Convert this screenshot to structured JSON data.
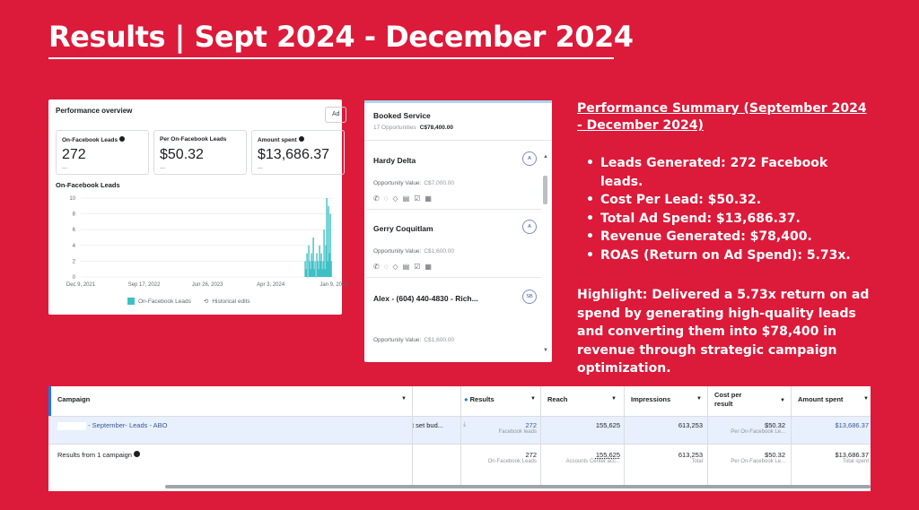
{
  "slide": {
    "title": "Results | Sept 2024 - December 2024"
  },
  "performance_overview": {
    "title": "Performance overview",
    "ad_button": "Ad",
    "metrics": [
      {
        "label": "On-Facebook Leads",
        "value": "272",
        "note": "—"
      },
      {
        "label": "Per On-Facebook Leads",
        "value": "$50.32",
        "note": "—"
      },
      {
        "label": "Amount spent",
        "value": "$13,686.37",
        "note": "—"
      }
    ],
    "chart_title": "On-Facebook Leads",
    "legend_series": "On-Facebook Leads",
    "legend_historical": "Historical edits"
  },
  "chart_data": {
    "type": "bar",
    "title": "On-Facebook Leads",
    "xlabel": "",
    "ylabel": "",
    "x_tick_labels": [
      "Dec 9, 2021",
      "Sep 17, 2022",
      "Jun 26, 2023",
      "Apr 3, 2024",
      "Jan 9, 2025"
    ],
    "y_ticks": [
      0,
      2,
      4,
      6,
      8,
      10
    ],
    "ylim": [
      0,
      10
    ],
    "grid": true,
    "legend": "bottom",
    "series": [
      {
        "name": "On-Facebook Leads",
        "color": "#3ec1c6",
        "x": [
          "2024-09-03",
          "2024-09-07",
          "2024-09-11",
          "2024-09-15",
          "2024-09-19",
          "2024-09-23",
          "2024-09-27",
          "2024-10-01",
          "2024-10-05",
          "2024-10-09",
          "2024-10-13",
          "2024-10-17",
          "2024-10-21",
          "2024-10-25",
          "2024-10-29",
          "2024-11-02",
          "2024-11-06",
          "2024-11-10",
          "2024-11-14",
          "2024-11-18",
          "2024-11-22",
          "2024-11-26",
          "2024-11-30",
          "2024-12-04",
          "2024-12-08",
          "2024-12-12",
          "2024-12-16",
          "2024-12-20",
          "2024-12-24",
          "2024-12-28"
        ],
        "values": [
          2,
          1,
          3,
          0,
          4,
          2,
          1,
          3,
          2,
          5,
          1,
          2,
          0,
          3,
          2,
          1,
          4,
          2,
          3,
          1,
          2,
          6,
          1,
          4,
          10,
          2,
          9,
          3,
          8,
          2
        ]
      }
    ]
  },
  "booked_service": {
    "title": "Booked Service",
    "count": "17 Opportunities",
    "total": "C$78,400.00",
    "cards": [
      {
        "name": "Hardy Delta",
        "avatar": "A",
        "opp_label": "Opportunity Value:",
        "opp_value": "C$7,000.00"
      },
      {
        "name": "Gerry Coquitlam",
        "avatar": "A",
        "opp_label": "Opportunity Value:",
        "opp_value": "C$1,600.00"
      },
      {
        "name": "Alex - (604) 440-4830 - Rich...",
        "avatar": "SB",
        "opp_label": "Opportunity Value:",
        "opp_value": "C$1,600.00"
      }
    ]
  },
  "summary": {
    "title": "Performance Summary (September 2024 - December 2024)",
    "bullets": [
      "Leads Generated: 272 Facebook leads.",
      "Cost Per Lead: $50.32.",
      "Total Ad Spend: $13,686.37.",
      "Revenue Generated: $78,400.",
      "ROAS (Return on Ad Spend): 5.73x."
    ],
    "highlight": "Highlight: Delivered a 5.73x return on ad spend by generating high-quality leads and converting them into $78,400 in revenue through strategic campaign optimization."
  },
  "campaign_table": {
    "headers": {
      "campaign": "Campaign",
      "results": "Results",
      "reach": "Reach",
      "impressions": "Impressions",
      "cost_per_result": "Cost per result",
      "amount_spent": "Amount spent"
    },
    "row": {
      "campaign": "- September- Leads - ABO",
      "budget": "t set bud...",
      "results": "272",
      "results_sub": "Facebook leads",
      "reach": "155,625",
      "impressions": "613,253",
      "cost_per_result": "$50.32",
      "cost_sub": "Per On-Facebook Le...",
      "amount_spent": "$13,686.37"
    },
    "total": {
      "label": "Results from 1 campaign",
      "results": "272",
      "results_sub": "On-Facebook Leads",
      "reach": "155,625",
      "reach_sub": "Accounts Center acc...",
      "impressions": "613,253",
      "impressions_sub": "Total",
      "cost_per_result": "$50.32",
      "cost_sub": "Per On-Facebook Le...",
      "amount_spent": "$13,686.37",
      "amount_sub": "Total spent"
    }
  },
  "colors": {
    "background": "#DC1A3A",
    "accent_teal": "#3ec1c6",
    "link_blue": "#385898"
  }
}
